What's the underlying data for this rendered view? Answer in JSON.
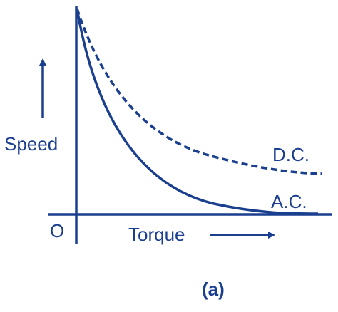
{
  "axes": {
    "y_label": "Speed",
    "x_label": "Torque",
    "origin": "O"
  },
  "curves": [
    {
      "label": "D.C."
    },
    {
      "label": "A.C."
    }
  ],
  "caption": "(a)"
}
